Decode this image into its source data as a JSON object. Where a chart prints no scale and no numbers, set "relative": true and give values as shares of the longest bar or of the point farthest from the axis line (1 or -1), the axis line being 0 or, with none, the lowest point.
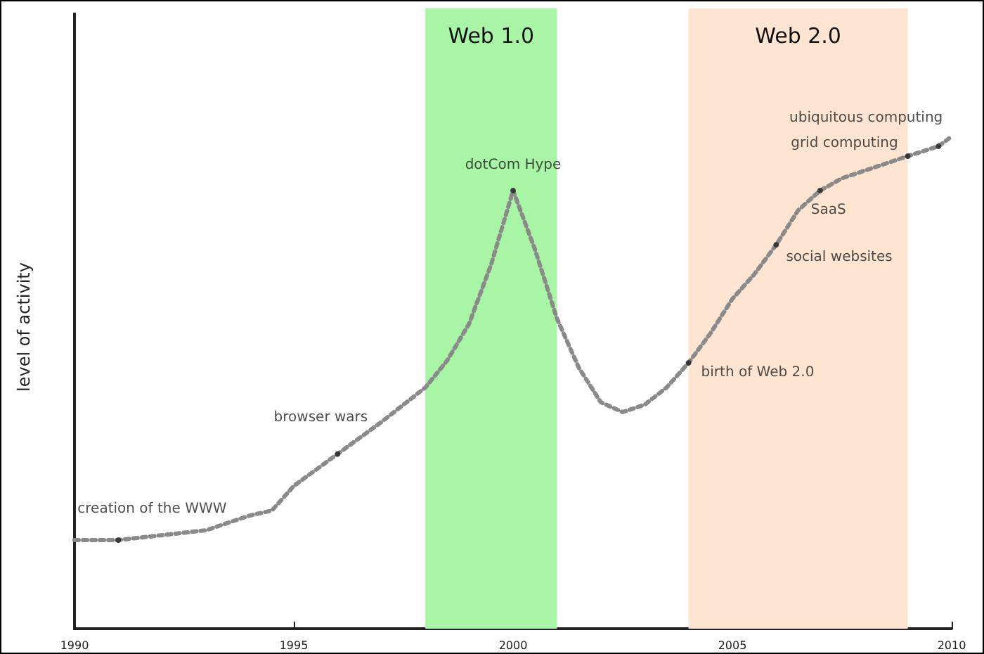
{
  "chart_data": {
    "type": "line",
    "relative": true,
    "ylabel": "level of activity",
    "xlim": [
      1990,
      2010
    ],
    "xticks": [
      1990,
      1995,
      2000,
      2005,
      2010
    ],
    "grid": false,
    "marker": "none",
    "line_style": "dotted",
    "series": [
      {
        "color": "#8a8a8a",
        "x": [
          1990,
          1991,
          1992,
          1993,
          1994,
          1994.5,
          1995,
          1996,
          1997,
          1998,
          1998.5,
          1999,
          1999.5,
          2000,
          2000.5,
          2001,
          2001.5,
          2002,
          2002.5,
          2003,
          2003.5,
          2004,
          2004.5,
          2005,
          2005.5,
          2006,
          2006.5,
          2007,
          2007.5,
          2008,
          2009,
          2009.7,
          2010
        ],
        "values": [
          0.18,
          0.18,
          0.19,
          0.2,
          0.23,
          0.24,
          0.29,
          0.355,
          0.42,
          0.49,
          0.545,
          0.62,
          0.74,
          0.89,
          0.77,
          0.63,
          0.53,
          0.46,
          0.44,
          0.455,
          0.49,
          0.54,
          0.6,
          0.67,
          0.72,
          0.78,
          0.85,
          0.89,
          0.915,
          0.93,
          0.96,
          0.98,
          1.0
        ]
      }
    ],
    "bands": [
      {
        "axis": "x",
        "from": 1998,
        "to": 2001,
        "label": "Web 1.0",
        "color": "#a8f5a5"
      },
      {
        "axis": "x",
        "from": 2004,
        "to": 2009,
        "label": "Web 2.0",
        "color": "#fde5d2"
      }
    ],
    "annotations": [
      {
        "text": "creation of the WWW",
        "x": 1991,
        "y": 0.18
      },
      {
        "text": "browser wars",
        "x": 1996,
        "y": 0.355
      },
      {
        "text": "dotCom Hype",
        "x": 2000,
        "y": 0.89
      },
      {
        "text": "birth of Web 2.0",
        "x": 2004,
        "y": 0.54
      },
      {
        "text": "social websites",
        "x": 2006,
        "y": 0.78
      },
      {
        "text": "SaaS",
        "x": 2007,
        "y": 0.89
      },
      {
        "text": "grid computing",
        "x": 2009,
        "y": 0.96
      },
      {
        "text": "ubiquitous computing",
        "x": 2009.7,
        "y": 0.98
      }
    ]
  }
}
